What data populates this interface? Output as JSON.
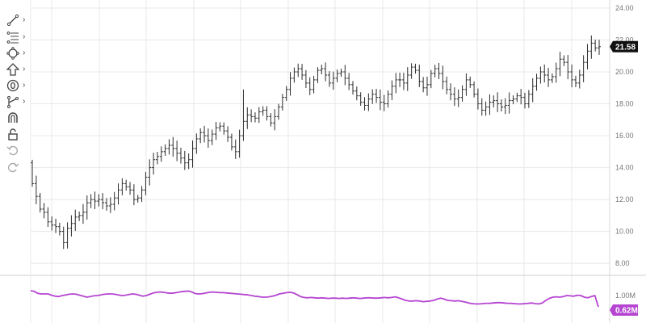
{
  "toolbar": {
    "tools": [
      {
        "icon": "trendline-icon",
        "has_submenu": true
      },
      {
        "icon": "fibonacci-icon",
        "has_submenu": true
      },
      {
        "icon": "shapes-icon",
        "has_submenu": true
      },
      {
        "icon": "arrow-up-icon",
        "has_submenu": true
      },
      {
        "icon": "zero-annotation-icon",
        "has_submenu": true
      },
      {
        "icon": "measure-icon",
        "has_submenu": true
      },
      {
        "icon": "magnet-icon",
        "has_submenu": false
      },
      {
        "icon": "lock-open-icon",
        "has_submenu": false
      },
      {
        "icon": "undo-icon",
        "has_submenu": false
      },
      {
        "icon": "redo-icon",
        "has_submenu": false
      }
    ],
    "chevron": "›"
  },
  "chart_data": [
    {
      "type": "ohlc",
      "title": "",
      "ylim": [
        7.4,
        24.1
      ],
      "y_ticks": [
        "8.00",
        "10.00",
        "12.00",
        "14.00",
        "16.00",
        "18.00",
        "20.00",
        "22.00",
        "24.00"
      ],
      "last_price_label": "21.58",
      "last_price": 21.58,
      "closes": [
        13.0,
        12.2,
        11.4,
        11.2,
        10.6,
        10.4,
        10.3,
        10.0,
        9.3,
        10.2,
        10.5,
        10.9,
        11.0,
        11.2,
        11.8,
        12.0,
        11.9,
        12.0,
        11.8,
        11.6,
        11.7,
        12.1,
        12.6,
        13.0,
        12.8,
        12.6,
        12.0,
        12.1,
        12.6,
        13.4,
        14.0,
        14.5,
        14.7,
        15.0,
        15.2,
        15.4,
        15.2,
        14.9,
        14.6,
        14.3,
        14.5,
        15.2,
        15.8,
        16.2,
        16.0,
        15.7,
        16.1,
        16.5,
        16.6,
        16.3,
        15.9,
        15.3,
        15.0,
        16.0,
        16.9,
        17.3,
        17.2,
        17.1,
        17.5,
        17.6,
        17.2,
        16.8,
        17.2,
        17.8,
        18.4,
        18.9,
        19.6,
        20.0,
        20.2,
        19.8,
        19.3,
        18.9,
        19.5,
        20.1,
        20.2,
        19.8,
        19.3,
        19.6,
        19.9,
        20.0,
        19.6,
        19.2,
        18.8,
        18.5,
        18.1,
        17.9,
        18.3,
        18.6,
        18.4,
        18.1,
        18.0,
        18.6,
        19.1,
        19.5,
        19.5,
        19.3,
        19.8,
        20.3,
        20.1,
        19.4,
        19.0,
        19.2,
        19.9,
        20.2,
        19.9,
        19.4,
        18.9,
        18.6,
        18.3,
        18.4,
        18.9,
        19.5,
        19.2,
        18.6,
        18.0,
        17.6,
        17.8,
        18.1,
        18.2,
        18.0,
        17.8,
        17.9,
        18.2,
        18.3,
        18.5,
        18.4,
        18.0,
        18.6,
        19.1,
        19.6,
        20.0,
        19.8,
        19.5,
        19.7,
        20.2,
        20.8,
        20.6,
        20.0,
        19.5,
        19.3,
        19.8,
        20.6,
        21.3,
        21.8,
        21.5,
        21.58
      ],
      "volume_axis_label": "1.00M",
      "volume_last_label": "0.62M",
      "volume_m": [
        1.1,
        1.08,
        1.02,
        1.0,
        1.0,
        1.0,
        0.96,
        0.93,
        0.92,
        0.95,
        0.97,
        0.99,
        1.0,
        0.99,
        0.96,
        0.93,
        0.9,
        0.92,
        0.94,
        0.95,
        0.97,
        0.99,
        1.0,
        1.0,
        0.99,
        0.97,
        0.95,
        0.96,
        0.98,
        1.0,
        0.99,
        0.96,
        0.93,
        0.95,
        0.99,
        1.03,
        1.05,
        1.06,
        1.05,
        1.03,
        1.02,
        1.03,
        1.05,
        1.07,
        1.08,
        1.09,
        1.06,
        1.01,
        1.0,
        1.01,
        1.03,
        1.05,
        1.06,
        1.05,
        1.04,
        1.04,
        1.03,
        1.02,
        1.01,
        1.0,
        0.99,
        0.98,
        0.97,
        0.95,
        0.93,
        0.92,
        0.9,
        0.9,
        0.91,
        0.93,
        0.96,
        1.0,
        1.02,
        1.04,
        1.05,
        1.03,
        0.98,
        0.92,
        0.89,
        0.88,
        0.89,
        0.88,
        0.87,
        0.88,
        0.87,
        0.86,
        0.87,
        0.87,
        0.86,
        0.87,
        0.86,
        0.87,
        0.88,
        0.87,
        0.86,
        0.87,
        0.88,
        0.88,
        0.87,
        0.87,
        0.88,
        0.89,
        0.88,
        0.89,
        0.91,
        0.88,
        0.84,
        0.8,
        0.78,
        0.78,
        0.79,
        0.78,
        0.76,
        0.77,
        0.78,
        0.8,
        0.84,
        0.87,
        0.84,
        0.8,
        0.79,
        0.78,
        0.79,
        0.77,
        0.75,
        0.72,
        0.7,
        0.69,
        0.69,
        0.7,
        0.71,
        0.71,
        0.72,
        0.73,
        0.73,
        0.72,
        0.71,
        0.71,
        0.7,
        0.69,
        0.69,
        0.7,
        0.71,
        0.72,
        0.7,
        0.69,
        0.72,
        0.8,
        0.86,
        0.9,
        0.91,
        0.9,
        0.92,
        0.95,
        0.94,
        0.93,
        0.96,
        0.95,
        0.9,
        0.88,
        0.92,
        0.95,
        0.6
      ]
    }
  ],
  "colors": {
    "bar": "#2b2b2b",
    "grid": "#e8e8e8",
    "volume": "#b545d1",
    "price_badge": "#111111"
  }
}
